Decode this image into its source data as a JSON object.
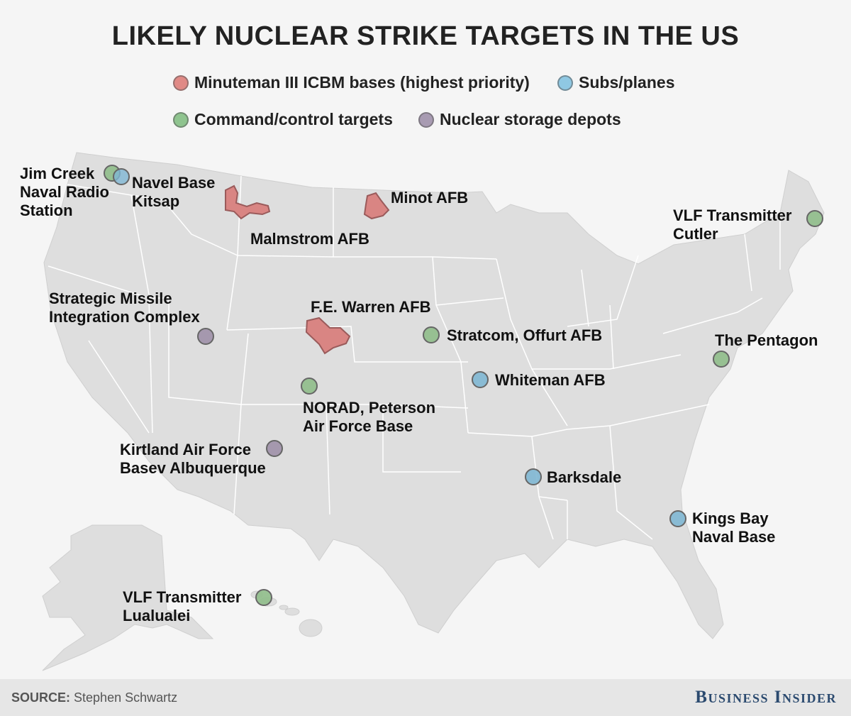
{
  "title": "LIKELY NUCLEAR STRIKE TARGETS IN THE US",
  "legend": [
    {
      "label": "Minuteman III ICBM bases (highest priority)",
      "color": "#e08a86"
    },
    {
      "label": "Subs/planes",
      "color": "#8fc8e3"
    },
    {
      "label": "Command/control targets",
      "color": "#8fc48f"
    },
    {
      "label": "Nuclear storage depots",
      "color": "#a89bb2"
    }
  ],
  "colors": {
    "land": "#dedede",
    "state_border": "#ffffff",
    "icbm_fill": "#d98583",
    "icbm_stroke": "#9a5b5b",
    "subs": "#7fb7d3",
    "command": "#8fbd8a",
    "storage": "#9f90a8",
    "marker_stroke": "#666666"
  },
  "sites": {
    "jim_creek": {
      "lines": [
        "Jim Creek",
        "Naval Radio",
        "Station"
      ],
      "category": "command"
    },
    "kitsap": {
      "lines": [
        "Navel Base",
        "Kitsap"
      ],
      "category": "subs"
    },
    "malmstrom": {
      "lines": [
        "Malmstrom AFB"
      ],
      "category": "icbm"
    },
    "minot": {
      "lines": [
        "Minot AFB"
      ],
      "category": "icbm"
    },
    "cutler": {
      "lines": [
        "VLF Transmitter",
        "Cutler"
      ],
      "category": "command"
    },
    "smic": {
      "lines": [
        "Strategic Missile",
        "Integration Complex"
      ],
      "category": "storage"
    },
    "warren": {
      "lines": [
        "F.E. Warren AFB"
      ],
      "category": "icbm"
    },
    "stratcom": {
      "lines": [
        "Stratcom, Offurt AFB"
      ],
      "category": "command"
    },
    "pentagon": {
      "lines": [
        "The Pentagon"
      ],
      "category": "command"
    },
    "whiteman": {
      "lines": [
        "Whiteman AFB"
      ],
      "category": "subs"
    },
    "norad": {
      "lines": [
        "NORAD, Peterson",
        "Air Force Base"
      ],
      "category": "command"
    },
    "kirtland": {
      "lines": [
        "Kirtland Air Force",
        "Basev Albuquerque"
      ],
      "category": "storage"
    },
    "barksdale": {
      "lines": [
        "Barksdale"
      ],
      "category": "subs"
    },
    "kings_bay": {
      "lines": [
        "Kings Bay",
        "Naval Base"
      ],
      "category": "subs"
    },
    "lualualei": {
      "lines": [
        "VLF Transmitter",
        "Lualualei"
      ],
      "category": "command"
    }
  },
  "footer": {
    "source_label": "SOURCE:",
    "source_text": "Stephen Schwartz",
    "brand": "Business Insider"
  }
}
